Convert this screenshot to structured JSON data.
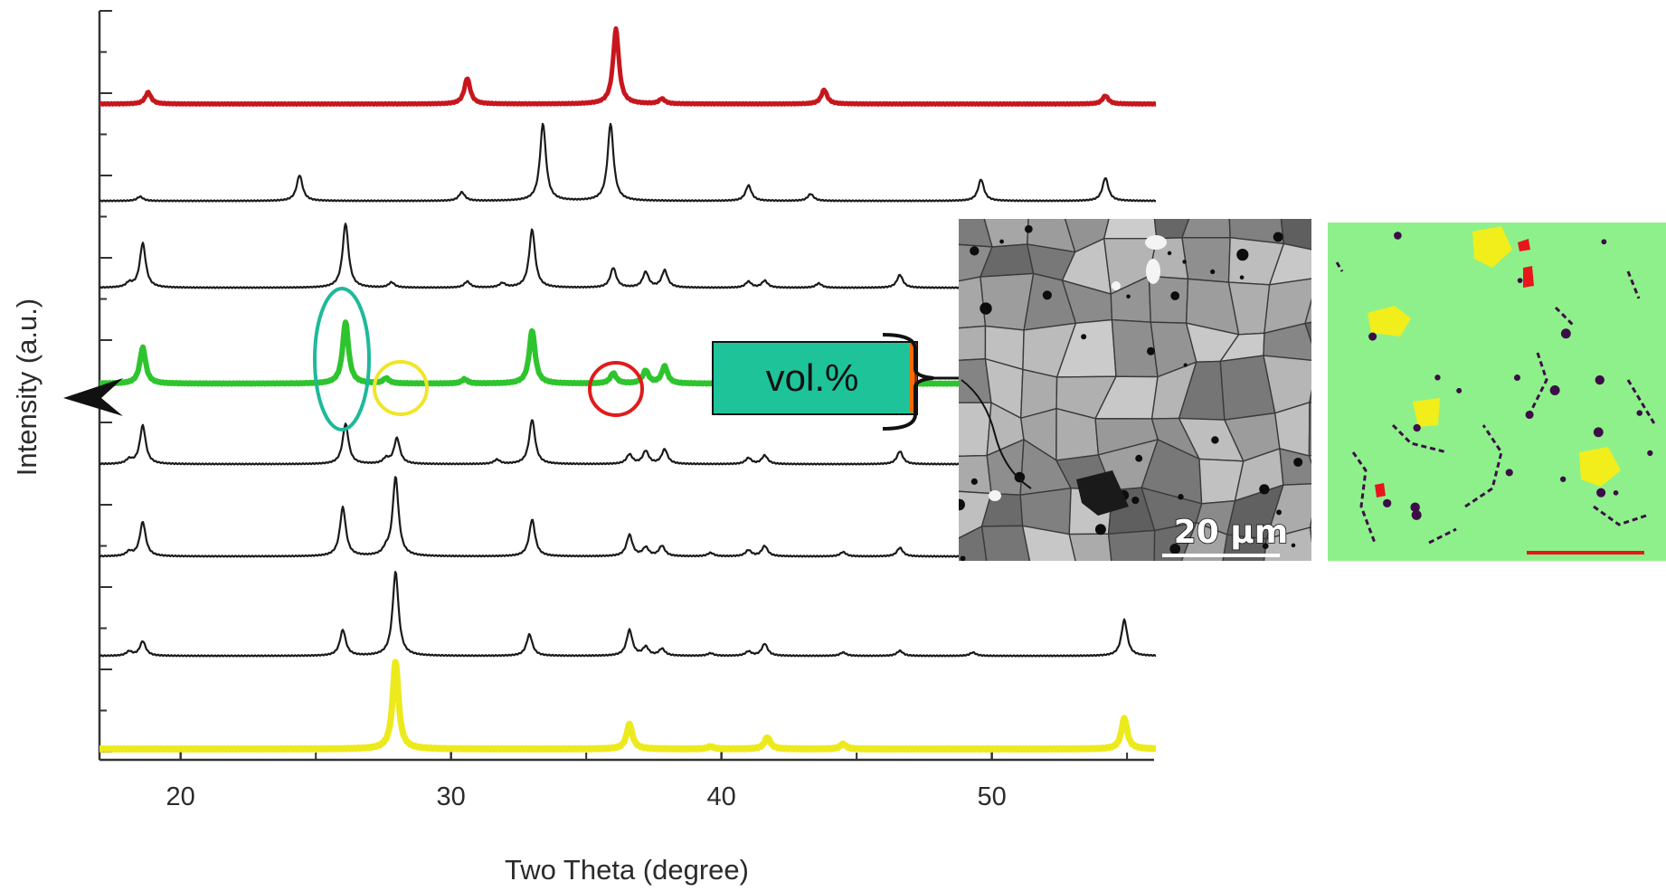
{
  "chart_data": {
    "type": "line",
    "xlabel": "Two Theta (degree)",
    "ylabel": "Intensity (a.u.)",
    "xlim": [
      17,
      56
    ],
    "x_ticks": [
      20,
      30,
      40,
      50
    ],
    "y_ticks_labeled": false,
    "grid": false,
    "legend": "none",
    "series": [
      {
        "color": "#c8161d",
        "width": 5,
        "baseline": 0.12,
        "peaks": [
          [
            18.8,
            0.14
          ],
          [
            30.6,
            0.31
          ],
          [
            36.1,
            0.9
          ],
          [
            37.8,
            0.06
          ],
          [
            43.8,
            0.17
          ],
          [
            54.2,
            0.1
          ]
        ]
      },
      {
        "color": "#1a1a1a",
        "width": 2.2,
        "baseline": 0.02,
        "peaks": [
          [
            18.5,
            0.05
          ],
          [
            24.4,
            0.3
          ],
          [
            30.4,
            0.1
          ],
          [
            33.4,
            0.9
          ],
          [
            35.9,
            0.9
          ],
          [
            41.0,
            0.18
          ],
          [
            43.3,
            0.08
          ],
          [
            49.6,
            0.25
          ],
          [
            54.2,
            0.27
          ]
        ]
      },
      {
        "color": "#1a1a1a",
        "width": 2.2,
        "baseline": 0.02,
        "peaks": [
          [
            18.1,
            0.05
          ],
          [
            18.6,
            0.52
          ],
          [
            26.1,
            0.75
          ],
          [
            27.8,
            0.06
          ],
          [
            30.6,
            0.07
          ],
          [
            31.9,
            0.05
          ],
          [
            33.0,
            0.68
          ],
          [
            36.0,
            0.23
          ],
          [
            37.2,
            0.18
          ],
          [
            37.9,
            0.2
          ],
          [
            41.0,
            0.07
          ],
          [
            41.6,
            0.08
          ],
          [
            43.6,
            0.05
          ],
          [
            46.6,
            0.15
          ]
        ]
      },
      {
        "color": "#2ec42e",
        "width": 6,
        "baseline": 0.02,
        "peaks": [
          [
            18.6,
            0.42
          ],
          [
            26.1,
            0.72
          ],
          [
            27.6,
            0.06
          ],
          [
            30.5,
            0.05
          ],
          [
            33.0,
            0.62
          ],
          [
            36.0,
            0.12
          ],
          [
            37.2,
            0.15
          ],
          [
            37.9,
            0.2
          ]
        ]
      },
      {
        "color": "#1a1a1a",
        "width": 2.2,
        "baseline": 0.02,
        "peaks": [
          [
            18.1,
            0.05
          ],
          [
            18.6,
            0.45
          ],
          [
            26.1,
            0.47
          ],
          [
            27.6,
            0.06
          ],
          [
            28.0,
            0.3
          ],
          [
            31.7,
            0.05
          ],
          [
            33.0,
            0.52
          ],
          [
            36.6,
            0.11
          ],
          [
            37.2,
            0.15
          ],
          [
            37.9,
            0.17
          ],
          [
            41.0,
            0.07
          ],
          [
            41.6,
            0.1
          ],
          [
            46.6,
            0.15
          ]
        ]
      },
      {
        "color": "#1a1a1a",
        "width": 2.2,
        "baseline": 0.02,
        "peaks": [
          [
            18.1,
            0.05
          ],
          [
            18.6,
            0.4
          ],
          [
            26.0,
            0.57
          ],
          [
            27.6,
            0.06
          ],
          [
            27.95,
            0.92
          ],
          [
            33.0,
            0.43
          ],
          [
            36.6,
            0.25
          ],
          [
            37.2,
            0.1
          ],
          [
            37.8,
            0.12
          ],
          [
            39.6,
            0.04
          ],
          [
            41.0,
            0.07
          ],
          [
            41.6,
            0.12
          ],
          [
            44.5,
            0.05
          ],
          [
            46.6,
            0.1
          ]
        ]
      },
      {
        "color": "#1a1a1a",
        "width": 2.2,
        "baseline": 0.02,
        "peaks": [
          [
            18.1,
            0.05
          ],
          [
            18.6,
            0.17
          ],
          [
            26.0,
            0.3
          ],
          [
            27.95,
            0.98
          ],
          [
            32.9,
            0.25
          ],
          [
            36.6,
            0.3
          ],
          [
            37.2,
            0.1
          ],
          [
            37.8,
            0.08
          ],
          [
            39.6,
            0.03
          ],
          [
            41.0,
            0.05
          ],
          [
            41.6,
            0.14
          ],
          [
            44.5,
            0.04
          ],
          [
            46.6,
            0.06
          ],
          [
            49.3,
            0.04
          ],
          [
            54.9,
            0.42
          ]
        ]
      },
      {
        "color": "#ecea1c",
        "width": 7,
        "baseline": 0.0,
        "peaks": [
          [
            27.95,
            1.05
          ],
          [
            36.6,
            0.3
          ],
          [
            39.6,
            0.03
          ],
          [
            41.7,
            0.14
          ],
          [
            44.5,
            0.06
          ],
          [
            54.9,
            0.37
          ]
        ]
      }
    ]
  },
  "callout": {
    "label": "vol.%",
    "fill": "#1ec39a",
    "bar_colors": [
      "#ff6a00",
      "#8a3300"
    ]
  },
  "phase_map_colors": {
    "matrix": "#8ef08a",
    "phase_yellow": "#f2ee1b",
    "phase_red": "#e8161c",
    "pores": "#3c0e48"
  },
  "micrograph": {
    "scale_label": "20 µm"
  }
}
